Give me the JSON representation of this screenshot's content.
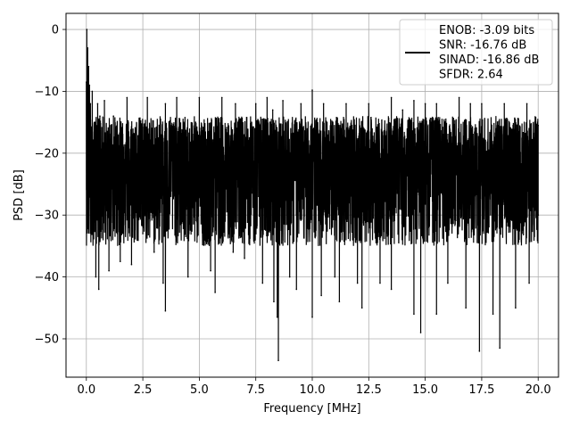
{
  "chart_data": {
    "type": "line",
    "xlabel": "Frequency [MHz]",
    "ylabel": "PSD [dB]",
    "xlim": [
      -0.9,
      20.9
    ],
    "ylim": [
      -56.2,
      2.6
    ],
    "xticks": [
      0.0,
      2.5,
      5.0,
      7.5,
      10.0,
      12.5,
      15.0,
      17.5,
      20.0
    ],
    "xtick_labels": [
      "0.0",
      "2.5",
      "5.0",
      "7.5",
      "10.0",
      "12.5",
      "15.0",
      "17.5",
      "20.0"
    ],
    "yticks": [
      0,
      -10,
      -20,
      -30,
      -40,
      -50
    ],
    "ytick_labels": [
      "0",
      "−10",
      "−20",
      "−30",
      "−40",
      "−50"
    ],
    "grid": true,
    "legend_position": "top-right",
    "legend_entries": [
      "ENOB: -3.09 bits",
      "SNR: -16.76 dB",
      "SINAD: -16.86 dB",
      "SFDR: 2.64"
    ],
    "series": [
      {
        "color": "#000000",
        "x_range": [
          0,
          20
        ],
        "noise_envelope": {
          "upper_typical": -14,
          "median": -22,
          "lower_typical": -35
        },
        "points": [
          [
            0.0,
            -8.5
          ],
          [
            0.02,
            0.0
          ],
          [
            0.04,
            -20.0
          ],
          [
            0.06,
            -3.0
          ],
          [
            0.08,
            -12.0
          ],
          [
            0.1,
            -6.0
          ],
          [
            0.12,
            -19.0
          ],
          [
            0.14,
            -9.0
          ],
          [
            0.16,
            -24.0
          ],
          [
            0.18,
            -12.0
          ],
          [
            0.2,
            -20.0
          ],
          [
            0.22,
            -27.0
          ],
          [
            0.24,
            -32.0
          ],
          [
            0.26,
            -10.0
          ],
          [
            0.3,
            -25.0
          ],
          [
            0.35,
            -15.0
          ],
          [
            0.4,
            -23.0
          ],
          [
            0.42,
            -40.0
          ],
          [
            0.5,
            -12.0
          ],
          [
            0.55,
            -42.0
          ],
          [
            0.6,
            -14.0
          ],
          [
            0.7,
            -27.0
          ],
          [
            0.8,
            -11.5
          ],
          [
            1.0,
            -39.0
          ],
          [
            1.2,
            -14.0
          ],
          [
            1.5,
            -37.5
          ],
          [
            1.8,
            -11.0
          ],
          [
            2.0,
            -38.0
          ],
          [
            2.5,
            -33.0
          ],
          [
            2.7,
            -11.0
          ],
          [
            3.0,
            -36.0
          ],
          [
            3.4,
            -41.0
          ],
          [
            3.5,
            -12.0
          ],
          [
            3.5,
            -45.5
          ],
          [
            4.0,
            -11.0
          ],
          [
            4.5,
            -40.0
          ],
          [
            5.0,
            -11.0
          ],
          [
            5.5,
            -39.0
          ],
          [
            5.7,
            -42.5
          ],
          [
            6.0,
            -11.0
          ],
          [
            6.5,
            -36.0
          ],
          [
            6.6,
            -12.0
          ],
          [
            7.0,
            -37.0
          ],
          [
            7.5,
            -12.0
          ],
          [
            7.8,
            -41.0
          ],
          [
            8.0,
            -11.0
          ],
          [
            8.25,
            -13.0
          ],
          [
            8.3,
            -44.0
          ],
          [
            8.45,
            -46.5
          ],
          [
            8.5,
            -53.5
          ],
          [
            8.7,
            -11.5
          ],
          [
            9.0,
            -40.0
          ],
          [
            9.3,
            -42.0
          ],
          [
            9.5,
            -12.0
          ],
          [
            10.0,
            -46.5
          ],
          [
            10.0,
            -9.8
          ],
          [
            10.4,
            -43.0
          ],
          [
            10.5,
            -12.0
          ],
          [
            11.0,
            -40.0
          ],
          [
            11.2,
            -44.0
          ],
          [
            11.5,
            -12.0
          ],
          [
            12.0,
            -41.0
          ],
          [
            12.2,
            -45.0
          ],
          [
            12.5,
            -12.0
          ],
          [
            13.0,
            -41.0
          ],
          [
            13.5,
            -11.0
          ],
          [
            13.5,
            -42.0
          ],
          [
            14.0,
            -13.0
          ],
          [
            14.5,
            -46.0
          ],
          [
            14.5,
            -11.5
          ],
          [
            14.8,
            -49.0
          ],
          [
            15.0,
            -12.0
          ],
          [
            15.5,
            -46.0
          ],
          [
            15.5,
            -12.0
          ],
          [
            16.0,
            -41.0
          ],
          [
            16.5,
            -11.0
          ],
          [
            16.8,
            -45.0
          ],
          [
            17.0,
            -12.0
          ],
          [
            17.4,
            -52.0
          ],
          [
            17.5,
            -12.0
          ],
          [
            18.0,
            -46.0
          ],
          [
            18.3,
            -51.5
          ],
          [
            18.5,
            -12.0
          ],
          [
            19.0,
            -45.0
          ],
          [
            19.5,
            -12.0
          ],
          [
            19.6,
            -41.0
          ],
          [
            20.0,
            -15.5
          ],
          [
            20.0,
            -30.0
          ]
        ]
      }
    ]
  }
}
